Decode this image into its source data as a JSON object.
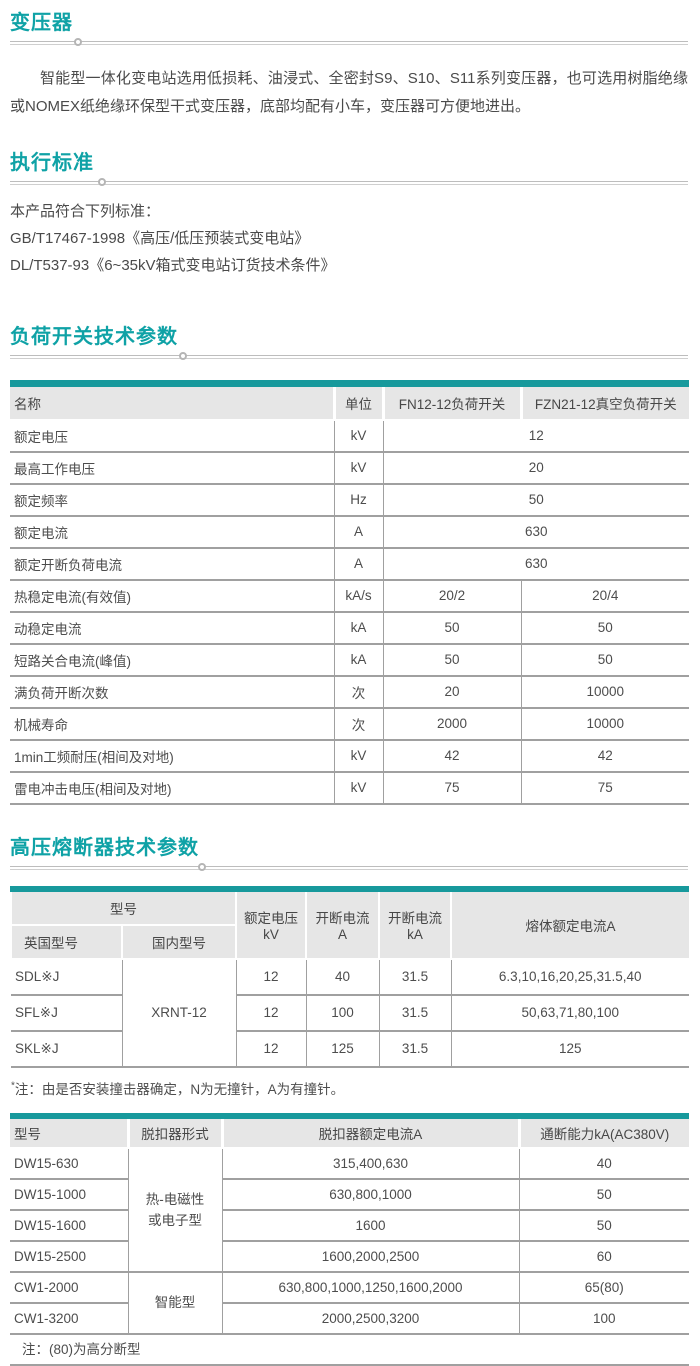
{
  "theme": {
    "accent_title": "#0fa2a6",
    "accent_bar": "#17999c",
    "header_bg": "#e6e6e6",
    "border_color": "#a0a0a0",
    "text_color": "#4a4a4a"
  },
  "transformer": {
    "title": "变压器",
    "paragraph": "智能型一体化变电站选用低损耗、油浸式、全密封S9、S10、S11系列变压器，也可选用树脂绝缘或NOMEX纸绝缘环保型干式变压器，底部均配有小车，变压器可方便地进出。"
  },
  "standards": {
    "title": "执行标准",
    "intro": "本产品符合下列标准：",
    "items": [
      "GB/T17467-1998《高压/低压预装式变电站》",
      "DL/T537-93《6~35kV箱式变电站订货技术条件》"
    ]
  },
  "load_switch": {
    "title": "负荷开关技术参数",
    "table": {
      "header": [
        [
          {
            "t": "名称"
          },
          {
            "t": "单位"
          },
          {
            "t": "FN12-12负荷开关"
          },
          {
            "t": "FZN21-12真空负荷开关"
          }
        ]
      ],
      "rows": [
        [
          {
            "t": "额定电压"
          },
          {
            "t": "kV"
          },
          {
            "t": "12",
            "colspan": 2
          }
        ],
        [
          {
            "t": "最高工作电压"
          },
          {
            "t": "kV"
          },
          {
            "t": "20",
            "colspan": 2
          }
        ],
        [
          {
            "t": "额定频率"
          },
          {
            "t": "Hz"
          },
          {
            "t": "50",
            "colspan": 2
          }
        ],
        [
          {
            "t": "额定电流"
          },
          {
            "t": "A"
          },
          {
            "t": "630",
            "colspan": 2
          }
        ],
        [
          {
            "t": "额定开断负荷电流"
          },
          {
            "t": "A"
          },
          {
            "t": "630",
            "colspan": 2
          }
        ],
        [
          {
            "t": "热稳定电流(有效值)"
          },
          {
            "t": "kA/s"
          },
          {
            "t": "20/2"
          },
          {
            "t": "20/4"
          }
        ],
        [
          {
            "t": "动稳定电流"
          },
          {
            "t": "kA"
          },
          {
            "t": "50"
          },
          {
            "t": "50"
          }
        ],
        [
          {
            "t": "短路关合电流(峰值)"
          },
          {
            "t": "kA"
          },
          {
            "t": "50"
          },
          {
            "t": "50"
          }
        ],
        [
          {
            "t": "满负荷开断次数"
          },
          {
            "t": "次"
          },
          {
            "t": "20"
          },
          {
            "t": "10000"
          }
        ],
        [
          {
            "t": "机械寿命"
          },
          {
            "t": "次"
          },
          {
            "t": "2000"
          },
          {
            "t": "10000"
          }
        ],
        [
          {
            "t": "1min工频耐压(相间及对地)"
          },
          {
            "t": "kV"
          },
          {
            "t": "42"
          },
          {
            "t": "42"
          }
        ],
        [
          {
            "t": "雷电冲击电压(相间及对地)"
          },
          {
            "t": "kV"
          },
          {
            "t": "75"
          },
          {
            "t": "75"
          }
        ]
      ]
    }
  },
  "fuse": {
    "title": "高压熔断器技术参数",
    "table": {
      "header": [
        [
          {
            "t": "型号",
            "colspan": 2
          },
          {
            "t": "额定电压\nkV",
            "rowspan": 2
          },
          {
            "t": "开断电流\nA",
            "rowspan": 2
          },
          {
            "t": "开断电流\nkA",
            "rowspan": 2
          },
          {
            "t": "熔体额定电流A",
            "rowspan": 2
          }
        ],
        [
          {
            "t": "英国型号"
          },
          {
            "t": "国内型号"
          }
        ]
      ],
      "rows": [
        [
          {
            "t": "SDL※J"
          },
          {
            "t": "XRNT-12",
            "rowspan": 3
          },
          {
            "t": "12"
          },
          {
            "t": "40"
          },
          {
            "t": "31.5"
          },
          {
            "t": "6.3,10,16,20,25,31.5,40"
          }
        ],
        [
          {
            "t": "SFL※J"
          },
          {
            "t": "12"
          },
          {
            "t": "100"
          },
          {
            "t": "31.5"
          },
          {
            "t": "50,63,71,80,100"
          }
        ],
        [
          {
            "t": "SKL※J"
          },
          {
            "t": "12"
          },
          {
            "t": "125"
          },
          {
            "t": "31.5"
          },
          {
            "t": "125"
          }
        ]
      ]
    },
    "note_star": "*",
    "note": "注：由是否安装撞击器确定，N为无撞针，A为有撞针。"
  },
  "breaker": {
    "table": {
      "header": [
        [
          {
            "t": "型号"
          },
          {
            "t": "脱扣器形式"
          },
          {
            "t": "脱扣器额定电流A"
          },
          {
            "t": "通断能力kA(AC380V)"
          }
        ]
      ],
      "rows": [
        [
          {
            "t": "DW15-630"
          },
          {
            "t": "热-电磁性\n或电子型",
            "rowspan": 4
          },
          {
            "t": "315,400,630"
          },
          {
            "t": "40"
          }
        ],
        [
          {
            "t": "DW15-1000"
          },
          {
            "t": "630,800,1000"
          },
          {
            "t": "50"
          }
        ],
        [
          {
            "t": "DW15-1600"
          },
          {
            "t": "1600"
          },
          {
            "t": "50"
          }
        ],
        [
          {
            "t": "DW15-2500"
          },
          {
            "t": "1600,2000,2500"
          },
          {
            "t": "60"
          }
        ],
        [
          {
            "t": "CW1-2000"
          },
          {
            "t": "智能型",
            "rowspan": 2
          },
          {
            "t": "630,800,1000,1250,1600,2000"
          },
          {
            "t": "65(80)"
          }
        ],
        [
          {
            "t": "CW1-3200"
          },
          {
            "t": "2000,2500,3200"
          },
          {
            "t": "100"
          }
        ],
        [
          {
            "t": "注：(80)为高分断型",
            "colspan": 4,
            "cls": "note-cell"
          }
        ]
      ]
    }
  }
}
